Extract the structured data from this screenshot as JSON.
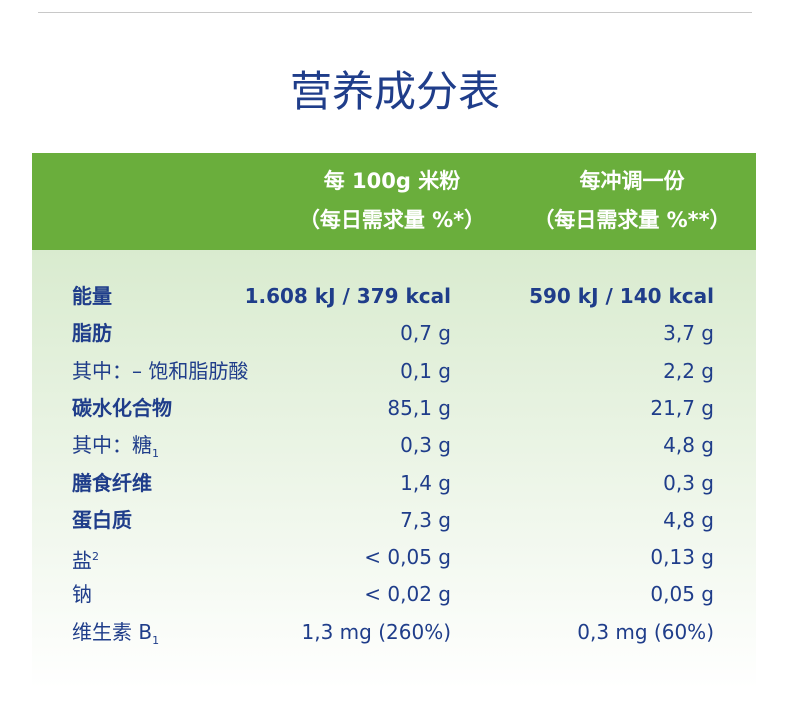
{
  "title": "营养成分表",
  "table": {
    "header": [
      [
        "每 100g 米粉",
        "（每日需求量 %*）"
      ],
      [
        "每冲调一份",
        "（每日需求量 %**）"
      ]
    ],
    "rows": [
      {
        "label": "能量",
        "note": null,
        "bold": true,
        "values": [
          "1.608 kJ / 379 kcal",
          "590 kJ / 140 kcal"
        ]
      },
      {
        "label": "脂肪",
        "note": null,
        "bold": true,
        "values": [
          "0,7 g",
          "3,7 g"
        ]
      },
      {
        "label": "其中：– 饱和脂肪酸",
        "note": null,
        "bold": false,
        "values": [
          "0,1 g",
          "2,2 g"
        ]
      },
      {
        "label": "碳水化合物",
        "note": null,
        "bold": true,
        "values": [
          "85,1 g",
          "21,7 g"
        ]
      },
      {
        "label": "其中：糖",
        "note": "1",
        "bold": false,
        "values": [
          "0,3 g",
          "4,8 g"
        ]
      },
      {
        "label": "膳食纤维",
        "note": null,
        "bold": true,
        "values": [
          "1,4 g",
          "0,3 g"
        ]
      },
      {
        "label": "蛋白质",
        "note": null,
        "bold": true,
        "values": [
          "7,3 g",
          "4,8 g"
        ]
      },
      {
        "label": "盐",
        "note": "2",
        "bold": false,
        "values": [
          "< 0,05 g",
          "0,13 g"
        ]
      },
      {
        "label": "钠",
        "note": null,
        "bold": false,
        "values": [
          "< 0,02 g",
          "0,05 g"
        ]
      },
      {
        "label": "维生素 B",
        "note": "1",
        "bold": false,
        "values": [
          "1,3 mg (260%)",
          "0,3 mg (60%)"
        ]
      }
    ]
  }
}
